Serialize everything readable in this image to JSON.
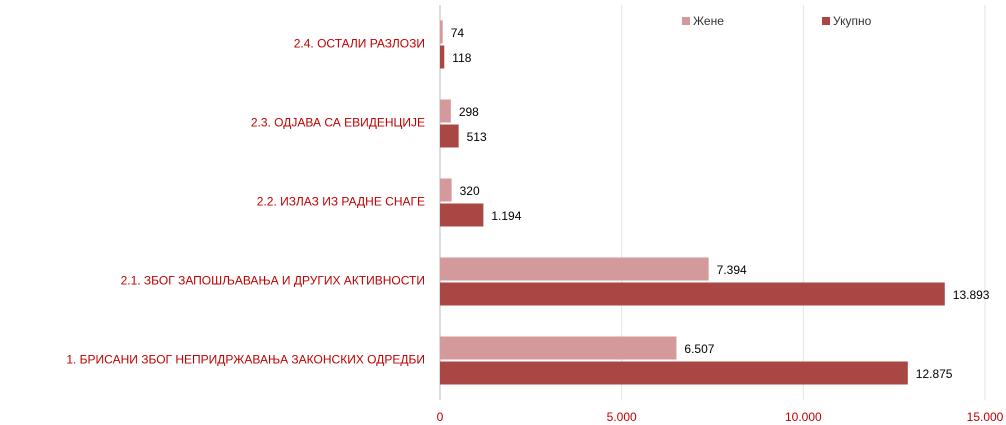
{
  "chart_data": {
    "type": "hbar",
    "categories": [
      "2.4. ОСТАЛИ РАЗЛОЗИ",
      "2.3. ОДЈАВА СА ЕВИДЕНЦИЈЕ",
      "2.2. ИЗЛАЗ ИЗ РАДНЕ СНАГЕ",
      "2.1. ЗБОГ ЗАПОШЉАВАЊА И ДРУГИХ АКТИВНОСТИ",
      "1. БРИСАНИ ЗБОГ НЕПРИДРЖАВАЊА ЗАКОНСКИХ ОДРЕДБИ"
    ],
    "series": [
      {
        "name": "Жене",
        "color": "#d49a9b",
        "values": [
          74,
          298,
          320,
          7394,
          6507
        ],
        "value_labels": [
          "74",
          "298",
          "320",
          "7.394",
          "6.507"
        ]
      },
      {
        "name": "Укупно",
        "color": "#a94744",
        "values": [
          118,
          513,
          1194,
          13893,
          12875
        ],
        "value_labels": [
          "118",
          "513",
          "1.194",
          "13.893",
          "12.875"
        ]
      }
    ],
    "xlim": [
      0,
      15000
    ],
    "xticks": [
      0,
      {
        "value": 5000,
        "label": "5.000"
      },
      {
        "value": 10000,
        "label": "10.000"
      },
      {
        "value": 15000,
        "label": "15.000"
      }
    ],
    "grid": true,
    "legend": "top"
  }
}
